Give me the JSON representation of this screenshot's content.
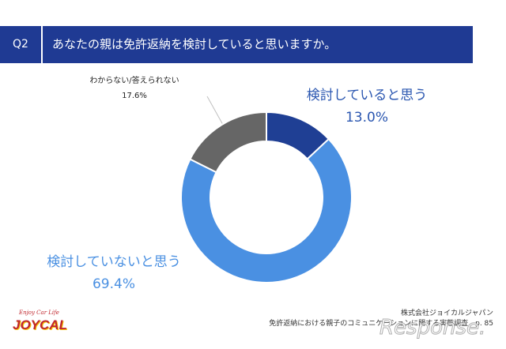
{
  "header": {
    "question_no": "Q2",
    "question_text": "あなたの親は免許返納を検討していると思いますか。"
  },
  "chart_data": {
    "type": "pie",
    "donut": true,
    "categories": [
      "検討していると思う",
      "検討していないと思う",
      "わからない/答えられない"
    ],
    "values": [
      13.0,
      69.4,
      17.6
    ],
    "value_labels": [
      "13.0%",
      "69.4%",
      "17.6%"
    ],
    "colors": [
      "#1f3f94",
      "#4a90e2",
      "#666666"
    ]
  },
  "footer": {
    "company": "株式会社ジョイカルジャパン",
    "report": "免許返納における親子のコミュニケーションに関する実態調査",
    "page": "p. 85"
  },
  "logo": {
    "tagline": "Enjoy Car Life",
    "name": "JOYCAL"
  },
  "watermark": "Response."
}
